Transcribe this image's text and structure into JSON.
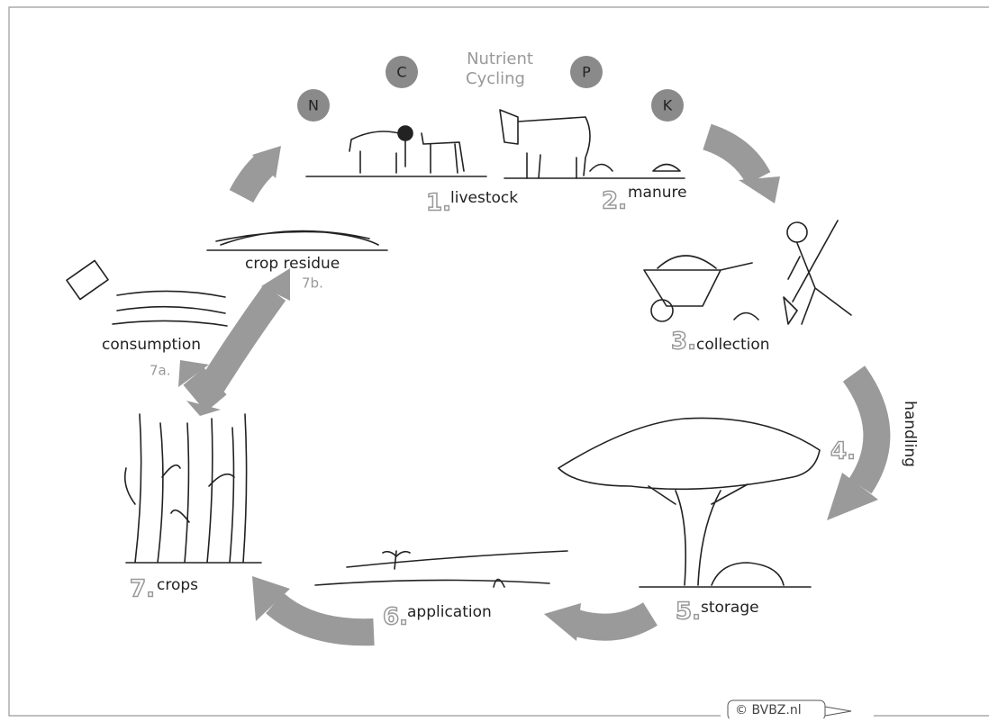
{
  "title": [
    "Nutrient",
    "Cycling"
  ],
  "nutrients": [
    "N",
    "C",
    "P",
    "K"
  ],
  "steps": [
    {
      "number": "1.",
      "label": "livestock"
    },
    {
      "number": "2.",
      "label": "manure"
    },
    {
      "number": "3.",
      "label": "collection"
    },
    {
      "number": "4.",
      "label": "handling"
    },
    {
      "number": "5.",
      "label": "storage"
    },
    {
      "number": "6.",
      "label": "application"
    },
    {
      "number": "7.",
      "label": "crops"
    },
    {
      "number": "7a.",
      "label": "consumption"
    },
    {
      "number": "7b.",
      "label": "crop residue"
    }
  ],
  "copyright": "© BVBZ.nl"
}
